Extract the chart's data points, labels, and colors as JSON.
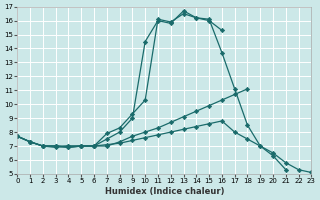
{
  "xlabel": "Humidex (Indice chaleur)",
  "xlim": [
    0,
    23
  ],
  "ylim": [
    5,
    17
  ],
  "bg_color": "#cce8e8",
  "grid_color": "#ffffff",
  "line_color": "#1a6b6b",
  "line1_x": [
    0,
    1,
    2,
    3,
    4,
    5,
    6,
    7,
    8,
    9,
    10,
    11,
    12,
    13,
    14,
    15,
    16,
    17,
    18,
    19,
    20,
    21
  ],
  "line1_y": [
    7.7,
    7.3,
    7.0,
    7.0,
    6.9,
    7.0,
    7.0,
    7.9,
    8.3,
    9.3,
    10.3,
    16.1,
    15.9,
    16.5,
    16.2,
    16.1,
    13.7,
    11.1,
    8.5,
    7.0,
    6.3,
    5.3
  ],
  "line2_x": [
    0,
    1,
    2,
    3,
    4,
    5,
    6,
    7,
    8,
    9,
    10,
    11,
    12,
    13,
    14,
    15,
    16
  ],
  "line2_y": [
    7.7,
    7.3,
    7.0,
    6.9,
    7.0,
    7.0,
    7.0,
    7.5,
    8.0,
    9.0,
    14.5,
    16.0,
    15.8,
    16.7,
    16.2,
    16.0,
    15.3
  ],
  "line3_x": [
    0,
    1,
    2,
    3,
    4,
    5,
    6,
    7,
    8,
    9,
    10,
    11,
    12,
    13,
    14,
    15,
    16,
    17,
    18
  ],
  "line3_y": [
    7.7,
    7.3,
    7.0,
    7.0,
    7.0,
    7.0,
    7.0,
    7.0,
    7.3,
    7.7,
    8.0,
    8.3,
    8.7,
    9.1,
    9.5,
    9.9,
    10.3,
    10.7,
    11.1
  ],
  "line4_x": [
    0,
    1,
    2,
    3,
    4,
    5,
    6,
    7,
    8,
    9,
    10,
    11,
    12,
    13,
    14,
    15,
    16,
    17,
    18,
    19,
    20,
    21,
    22,
    23
  ],
  "line4_y": [
    7.7,
    7.3,
    7.0,
    7.0,
    6.9,
    7.0,
    7.0,
    7.1,
    7.2,
    7.4,
    7.6,
    7.8,
    8.0,
    8.2,
    8.4,
    8.6,
    8.8,
    8.0,
    7.5,
    7.0,
    6.5,
    5.8,
    5.3,
    5.1
  ]
}
